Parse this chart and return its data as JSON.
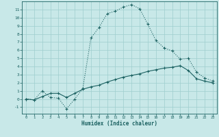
{
  "title": "",
  "xlabel": "Humidex (Indice chaleur)",
  "bg_color": "#c8e8e8",
  "grid_color": "#9ecece",
  "line_color": "#1a6060",
  "xlim": [
    -0.5,
    23.5
  ],
  "ylim": [
    -1.8,
    12.0
  ],
  "yticks": [
    -1,
    0,
    1,
    2,
    3,
    4,
    5,
    6,
    7,
    8,
    9,
    10,
    11
  ],
  "xticks": [
    0,
    1,
    2,
    3,
    4,
    5,
    6,
    7,
    8,
    9,
    10,
    11,
    12,
    13,
    14,
    15,
    16,
    17,
    18,
    19,
    20,
    21,
    22,
    23
  ],
  "line1_x": [
    0,
    1,
    2,
    3,
    4,
    5,
    6,
    7,
    8,
    9,
    10,
    11,
    12,
    13,
    14,
    15,
    16,
    17,
    18,
    19,
    20,
    21,
    22,
    23
  ],
  "line1_y": [
    0.0,
    -0.1,
    1.0,
    0.2,
    0.1,
    -1.2,
    0.0,
    1.3,
    7.5,
    8.8,
    10.5,
    10.8,
    11.3,
    11.6,
    11.1,
    9.2,
    7.2,
    6.3,
    5.9,
    4.9,
    5.0,
    3.3,
    2.6,
    2.2
  ],
  "line2_x": [
    0,
    1,
    2,
    3,
    4,
    5,
    6,
    7,
    8,
    9,
    10,
    11,
    12,
    13,
    14,
    15,
    16,
    17,
    18,
    19,
    20,
    21,
    22,
    23
  ],
  "line2_y": [
    0.0,
    -0.1,
    0.3,
    0.7,
    0.7,
    0.2,
    0.7,
    1.2,
    1.5,
    1.7,
    2.1,
    2.4,
    2.7,
    2.9,
    3.1,
    3.4,
    3.6,
    3.8,
    3.9,
    4.1,
    3.5,
    2.5,
    2.2,
    2.0
  ]
}
